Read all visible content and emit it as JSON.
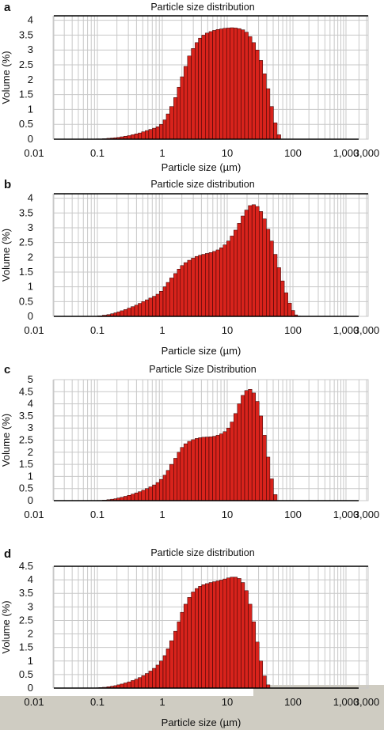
{
  "colors": {
    "bar_fill": "#d8231c",
    "bar_edge": "#2a0000",
    "grid": "#c8c8c8"
  },
  "chart_data": [
    {
      "panel": "a",
      "type": "bar",
      "title": "Particle size distribution",
      "xlabel": "Particle size (µm)",
      "ylabel": "Volume (%)",
      "x_scale": "log",
      "xlim": [
        0.02,
        3000
      ],
      "ylim": [
        0,
        4.15
      ],
      "xticks": [
        "0.01",
        "0.1",
        "1",
        "10",
        "100",
        "1,000",
        "3,000"
      ],
      "yticks": [
        "0",
        "0.5",
        "1",
        "1.5",
        "2",
        "2.5",
        "3",
        "3.5",
        "4"
      ],
      "series": [
        {
          "x": [
            0.1,
            0.11,
            0.13,
            0.15,
            0.17,
            0.19,
            0.21,
            0.24,
            0.27,
            0.31,
            0.35,
            0.4,
            0.45,
            0.51,
            0.58,
            0.66,
            0.75,
            0.85,
            0.96,
            1.1,
            1.2,
            1.4,
            1.6,
            1.8,
            2,
            2.3,
            2.6,
            3,
            3.4,
            3.8,
            4.3,
            4.9,
            5.6,
            6.3,
            7.2,
            8.1,
            9.2,
            10.4,
            11.8,
            13.4,
            15.2,
            17.3,
            19.6,
            22.3,
            25.3,
            28.7,
            32.5,
            36.9,
            41.9,
            47.5,
            53.9,
            61.2,
            69.4
          ],
          "values": [
            0.01,
            0.01,
            0.02,
            0.03,
            0.04,
            0.05,
            0.06,
            0.08,
            0.1,
            0.12,
            0.15,
            0.18,
            0.21,
            0.25,
            0.29,
            0.33,
            0.37,
            0.42,
            0.5,
            0.65,
            0.85,
            1.1,
            1.4,
            1.75,
            2.1,
            2.45,
            2.8,
            3.05,
            3.25,
            3.4,
            3.5,
            3.57,
            3.62,
            3.66,
            3.69,
            3.71,
            3.73,
            3.74,
            3.75,
            3.74,
            3.72,
            3.68,
            3.6,
            3.45,
            3.25,
            3.0,
            2.65,
            2.2,
            1.7,
            1.1,
            0.55,
            0.15,
            0.0
          ]
        }
      ]
    },
    {
      "panel": "b",
      "type": "bar",
      "title": "Particle size distribution",
      "xlabel": "Particle size (µm)",
      "ylabel": "Volume (%)",
      "x_scale": "log",
      "xlim": [
        0.02,
        3000
      ],
      "ylim": [
        0,
        4.15
      ],
      "xticks": [
        "0.01",
        "0.1",
        "1",
        "10",
        "100",
        "1,000",
        "3,000"
      ],
      "yticks": [
        "0",
        "0.5",
        "1",
        "1.5",
        "2",
        "2.5",
        "3",
        "3.5",
        "4"
      ],
      "series": [
        {
          "x": [
            0.11,
            0.13,
            0.15,
            0.17,
            0.19,
            0.21,
            0.24,
            0.27,
            0.31,
            0.35,
            0.4,
            0.45,
            0.51,
            0.58,
            0.66,
            0.75,
            0.85,
            0.96,
            1.1,
            1.2,
            1.4,
            1.6,
            1.8,
            2,
            2.3,
            2.6,
            3,
            3.4,
            3.8,
            4.3,
            4.9,
            5.6,
            6.3,
            7.2,
            8.1,
            9.2,
            10.4,
            11.8,
            13.4,
            15.2,
            17.3,
            19.6,
            22.3,
            25.3,
            28.7,
            32.5,
            36.9,
            41.9,
            47.5,
            53.9,
            61.2,
            69.4,
            78.7,
            89.3,
            101,
            115,
            130,
            148
          ],
          "values": [
            0.02,
            0.04,
            0.06,
            0.09,
            0.12,
            0.15,
            0.19,
            0.23,
            0.28,
            0.33,
            0.38,
            0.44,
            0.5,
            0.56,
            0.62,
            0.68,
            0.75,
            0.85,
            1.0,
            1.15,
            1.3,
            1.45,
            1.6,
            1.72,
            1.82,
            1.9,
            1.97,
            2.03,
            2.07,
            2.1,
            2.13,
            2.16,
            2.2,
            2.25,
            2.32,
            2.42,
            2.55,
            2.72,
            2.92,
            3.15,
            3.4,
            3.6,
            3.75,
            3.78,
            3.72,
            3.55,
            3.3,
            2.95,
            2.55,
            2.1,
            1.65,
            1.2,
            0.8,
            0.45,
            0.2,
            0.05,
            0.01,
            0.0
          ]
        }
      ]
    },
    {
      "panel": "c",
      "type": "bar",
      "title": "Particle Size Distribution",
      "xlabel": "",
      "ylabel": "Volume (%)",
      "x_scale": "log",
      "xlim": [
        0.02,
        3000
      ],
      "ylim": [
        0,
        5
      ],
      "xticks": [
        "0.01",
        "0.1",
        "1",
        "10",
        "100",
        "1,000",
        "3,000"
      ],
      "yticks": [
        "0",
        "0.5",
        "1",
        "1.5",
        "2",
        "2.5",
        "3",
        "3.5",
        "4",
        "4.5",
        "5"
      ],
      "series": [
        {
          "x": [
            0.11,
            0.13,
            0.15,
            0.17,
            0.19,
            0.21,
            0.24,
            0.27,
            0.31,
            0.35,
            0.4,
            0.45,
            0.51,
            0.58,
            0.66,
            0.75,
            0.85,
            0.96,
            1.1,
            1.2,
            1.4,
            1.6,
            1.8,
            2,
            2.3,
            2.6,
            3,
            3.4,
            3.8,
            4.3,
            4.9,
            5.6,
            6.3,
            7.2,
            8.1,
            9.2,
            10.4,
            11.8,
            13.4,
            15.2,
            17.3,
            19.6,
            22.3,
            25.3,
            28.7,
            32.5,
            36.9,
            41.9,
            47.5,
            53.9,
            61.2
          ],
          "values": [
            0.01,
            0.02,
            0.04,
            0.06,
            0.08,
            0.11,
            0.14,
            0.18,
            0.22,
            0.27,
            0.32,
            0.37,
            0.43,
            0.5,
            0.57,
            0.65,
            0.75,
            0.88,
            1.05,
            1.25,
            1.5,
            1.75,
            2.0,
            2.2,
            2.35,
            2.45,
            2.52,
            2.57,
            2.6,
            2.62,
            2.63,
            2.64,
            2.66,
            2.7,
            2.76,
            2.85,
            3.0,
            3.25,
            3.6,
            4.0,
            4.35,
            4.55,
            4.6,
            4.45,
            4.1,
            3.5,
            2.7,
            1.8,
            0.9,
            0.25,
            0.0
          ]
        }
      ]
    },
    {
      "panel": "d",
      "type": "bar",
      "title": "Particle size distribution",
      "xlabel": "Particle size (µm)",
      "ylabel": "Volume (%)",
      "x_scale": "log",
      "xlim": [
        0.02,
        3000
      ],
      "ylim": [
        0,
        4.5
      ],
      "xticks": [
        "0.01",
        "0.1",
        "1",
        "10",
        "100",
        "1,000",
        "3,000"
      ],
      "yticks": [
        "0",
        "0.5",
        "1",
        "1.5",
        "2",
        "2.5",
        "3",
        "3.5",
        "4",
        "4.5"
      ],
      "series": [
        {
          "x": [
            0.1,
            0.11,
            0.13,
            0.15,
            0.17,
            0.19,
            0.21,
            0.24,
            0.27,
            0.31,
            0.35,
            0.4,
            0.45,
            0.51,
            0.58,
            0.66,
            0.75,
            0.85,
            0.96,
            1.1,
            1.2,
            1.4,
            1.6,
            1.8,
            2,
            2.3,
            2.6,
            3,
            3.4,
            3.8,
            4.3,
            4.9,
            5.6,
            6.3,
            7.2,
            8.1,
            9.2,
            10.4,
            11.8,
            13.4,
            15.2,
            17.3,
            19.6,
            22.3,
            25.3,
            28.7,
            32.5,
            36.9,
            41.9,
            47.5
          ],
          "values": [
            0.01,
            0.02,
            0.03,
            0.05,
            0.07,
            0.09,
            0.12,
            0.15,
            0.19,
            0.23,
            0.28,
            0.33,
            0.39,
            0.46,
            0.54,
            0.63,
            0.73,
            0.85,
            1.0,
            1.2,
            1.45,
            1.75,
            2.1,
            2.45,
            2.8,
            3.1,
            3.35,
            3.55,
            3.68,
            3.76,
            3.82,
            3.86,
            3.9,
            3.93,
            3.96,
            3.99,
            4.03,
            4.07,
            4.1,
            4.1,
            4.05,
            3.9,
            3.6,
            3.1,
            2.45,
            1.7,
            1.0,
            0.45,
            0.12,
            0.0
          ]
        }
      ]
    }
  ]
}
